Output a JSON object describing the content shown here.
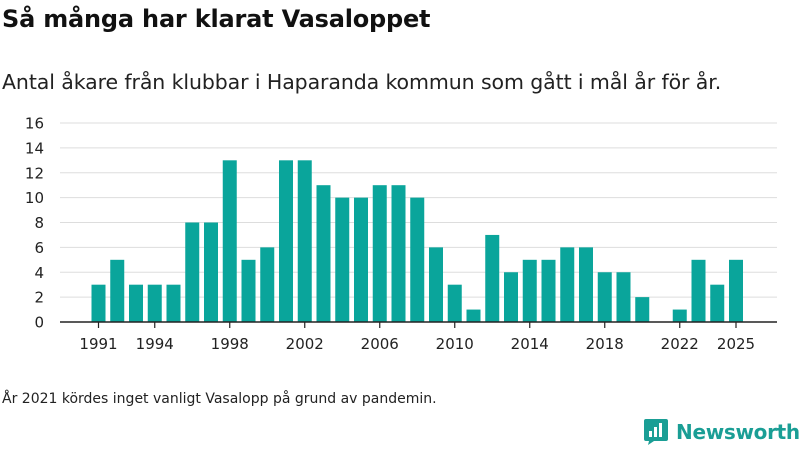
{
  "header": {
    "title": "Så många har klarat Vasaloppet",
    "subtitle": "Antal åkare från klubbar i Haparanda kommun som gått i mål år för år."
  },
  "footnote": "År 2021 kördes inget vanligt Vasalopp på grund av pandemin.",
  "brand": {
    "name": "Newsworthy",
    "icon": "newsworthy-logo-icon",
    "color": "#1a9e95"
  },
  "chart_data": {
    "type": "bar",
    "title": "",
    "xlabel": "",
    "ylabel": "",
    "x": [
      1991,
      1992,
      1993,
      1994,
      1995,
      1996,
      1997,
      1998,
      1999,
      2000,
      2001,
      2002,
      2003,
      2004,
      2005,
      2006,
      2007,
      2008,
      2009,
      2010,
      2011,
      2012,
      2013,
      2014,
      2015,
      2016,
      2017,
      2018,
      2019,
      2020,
      2021,
      2022,
      2023,
      2024,
      2025
    ],
    "values": [
      3,
      5,
      3,
      3,
      3,
      8,
      8,
      13,
      5,
      6,
      13,
      13,
      11,
      10,
      10,
      11,
      11,
      10,
      6,
      3,
      1,
      7,
      4,
      5,
      5,
      6,
      6,
      4,
      4,
      2,
      null,
      1,
      5,
      3,
      5
    ],
    "xticks": [
      "1991",
      "1994",
      "1998",
      "2002",
      "2006",
      "2010",
      "2014",
      "2018",
      "2022",
      "2025"
    ],
    "yticks": [
      "0",
      "2",
      "4",
      "6",
      "8",
      "10",
      "12",
      "14",
      "16"
    ],
    "ylim": [
      0,
      16
    ],
    "grid": true,
    "bar_color": "#0aa59b"
  }
}
